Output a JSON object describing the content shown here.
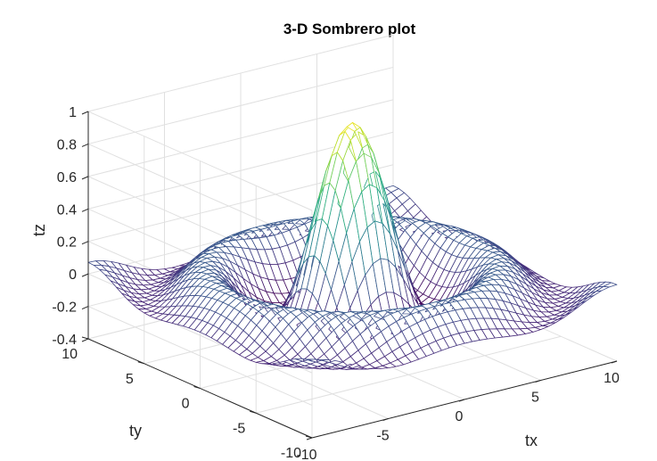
{
  "chart_data": {
    "type": "surface",
    "title": "3-D Sombrero plot",
    "function": "z = sin(sqrt(x^2 + y^2)) / sqrt(x^2 + y^2)",
    "xlabel": "tx",
    "ylabel": "ty",
    "zlabel": "tz",
    "xlim": [
      -10,
      10
    ],
    "ylim": [
      -10,
      10
    ],
    "zlim": [
      -0.4,
      1
    ],
    "x_ticks": [
      "-10",
      "-5",
      "0",
      "5",
      "10"
    ],
    "y_ticks": [
      "-10",
      "-5",
      "0",
      "5",
      "10"
    ],
    "z_ticks": [
      "-0.4",
      "-0.2",
      "0",
      "0.2",
      "0.4",
      "0.6",
      "0.8",
      "1"
    ],
    "grid_points_per_axis": 41,
    "colormap": "viridis",
    "style": "mesh",
    "grid": true
  }
}
